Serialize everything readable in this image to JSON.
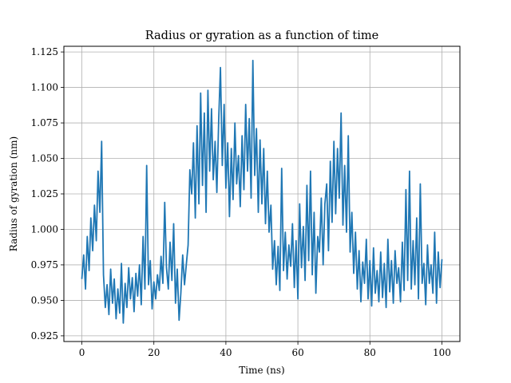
{
  "chart_data": {
    "type": "line",
    "title": "Radius or gyration as a function of time",
    "xlabel": "Time (ns)",
    "ylabel": "Radius of gyration (nm)",
    "xlim": [
      -5,
      105
    ],
    "ylim": [
      0.921,
      1.129
    ],
    "grid": true,
    "xticks": [
      0,
      20,
      40,
      60,
      80,
      100
    ],
    "yticks": [
      0.925,
      0.95,
      0.975,
      1.0,
      1.025,
      1.05,
      1.075,
      1.1,
      1.125
    ],
    "series": [
      {
        "color": "#1f77b4",
        "x": [
          0,
          0.5,
          1,
          1.5,
          2,
          2.5,
          3,
          3.5,
          4,
          4.5,
          5,
          5.5,
          6,
          6.5,
          7,
          7.5,
          8,
          8.5,
          9,
          9.5,
          10,
          10.5,
          11,
          11.5,
          12,
          12.5,
          13,
          13.5,
          14,
          14.5,
          15,
          15.5,
          16,
          16.5,
          17,
          17.5,
          18,
          18.5,
          19,
          19.5,
          20,
          20.5,
          21,
          21.5,
          22,
          22.5,
          23,
          23.5,
          24,
          24.5,
          25,
          25.5,
          26,
          26.5,
          27,
          27.5,
          28,
          28.5,
          29,
          29.5,
          30,
          30.5,
          31,
          31.5,
          32,
          32.5,
          33,
          33.5,
          34,
          34.5,
          35,
          35.5,
          36,
          36.5,
          37,
          37.5,
          38,
          38.5,
          39,
          39.5,
          40,
          40.5,
          41,
          41.5,
          42,
          42.5,
          43,
          43.5,
          44,
          44.5,
          45,
          45.5,
          46,
          46.5,
          47,
          47.5,
          48,
          48.5,
          49,
          49.5,
          50,
          50.5,
          51,
          51.5,
          52,
          52.5,
          53,
          53.5,
          54,
          54.5,
          55,
          55.5,
          56,
          56.5,
          57,
          57.5,
          58,
          58.5,
          59,
          59.5,
          60,
          60.5,
          61,
          61.5,
          62,
          62.5,
          63,
          63.5,
          64,
          64.5,
          65,
          65.5,
          66,
          66.5,
          67,
          67.5,
          68,
          68.5,
          69,
          69.5,
          70,
          70.5,
          71,
          71.5,
          72,
          72.5,
          73,
          73.5,
          74,
          74.5,
          75,
          75.5,
          76,
          76.5,
          77,
          77.5,
          78,
          78.5,
          79,
          79.5,
          80,
          80.5,
          81,
          81.5,
          82,
          82.5,
          83,
          83.5,
          84,
          84.5,
          85,
          85.5,
          86,
          86.5,
          87,
          87.5,
          88,
          88.5,
          89,
          89.5,
          90,
          90.5,
          91,
          91.5,
          92,
          92.5,
          93,
          93.5,
          94,
          94.5,
          95,
          95.5,
          96,
          96.5,
          97,
          97.5,
          98,
          98.5,
          99,
          99.5,
          100
        ],
        "y": [
          0.965,
          0.982,
          0.958,
          0.995,
          0.971,
          1.008,
          0.985,
          1.017,
          0.992,
          1.041,
          1.012,
          1.062,
          0.968,
          0.945,
          0.961,
          0.94,
          0.972,
          0.948,
          0.965,
          0.937,
          0.958,
          0.941,
          0.976,
          0.934,
          0.962,
          0.945,
          0.973,
          0.951,
          0.966,
          0.942,
          0.969,
          0.953,
          0.975,
          0.947,
          0.995,
          0.958,
          1.045,
          0.961,
          0.978,
          0.944,
          0.963,
          0.951,
          0.968,
          0.957,
          0.981,
          0.962,
          1.019,
          0.973,
          0.958,
          0.991,
          0.964,
          1.004,
          0.948,
          0.972,
          0.936,
          0.955,
          0.982,
          0.961,
          0.975,
          0.989,
          1.042,
          1.025,
          1.061,
          1.008,
          1.073,
          1.018,
          1.096,
          1.031,
          1.082,
          1.012,
          1.098,
          1.041,
          1.085,
          1.035,
          1.062,
          1.026,
          1.077,
          1.114,
          1.045,
          1.088,
          1.029,
          1.061,
          1.009,
          1.057,
          1.021,
          1.075,
          1.032,
          1.052,
          1.016,
          1.066,
          1.028,
          1.088,
          1.041,
          1.078,
          1.022,
          1.119,
          1.038,
          1.071,
          1.012,
          1.063,
          1.018,
          1.057,
          1.004,
          1.041,
          0.998,
          1.017,
          0.972,
          0.992,
          0.961,
          0.988,
          0.957,
          1.043,
          0.971,
          0.998,
          0.965,
          0.989,
          0.974,
          1.004,
          0.959,
          0.992,
          0.951,
          1.018,
          0.973,
          1.002,
          0.964,
          1.031,
          0.978,
          1.041,
          0.968,
          1.012,
          0.955,
          0.995,
          0.984,
          1.022,
          0.975,
          1.018,
          1.032,
          0.985,
          1.048,
          1.005,
          1.062,
          1.011,
          1.057,
          1.022,
          1.082,
          1.003,
          1.045,
          0.998,
          1.066,
          0.984,
          1.012,
          0.969,
          0.998,
          0.958,
          0.985,
          0.949,
          0.977,
          0.962,
          0.993,
          0.951,
          0.978,
          0.946,
          0.987,
          0.955,
          0.971,
          0.949,
          0.984,
          0.952,
          0.976,
          0.945,
          0.993,
          0.956,
          0.978,
          0.948,
          0.985,
          0.962,
          0.973,
          0.949,
          0.991,
          0.957,
          1.028,
          0.964,
          1.041,
          0.958,
          0.992,
          0.961,
          1.008,
          0.951,
          1.032,
          0.962,
          0.976,
          0.947,
          0.989,
          0.962,
          0.975,
          0.955,
          0.998,
          0.948,
          0.984,
          0.959,
          0.979
        ]
      }
    ]
  }
}
